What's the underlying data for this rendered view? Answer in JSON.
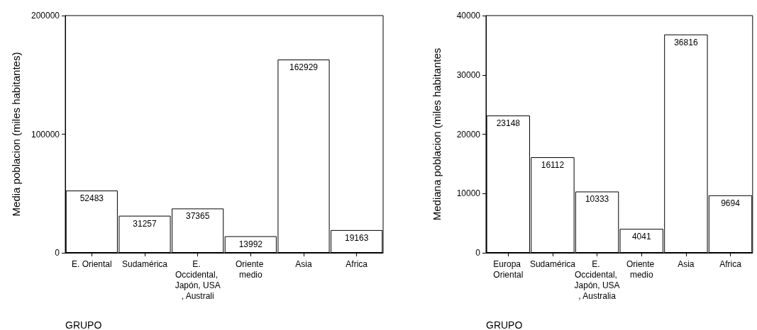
{
  "chart_data": [
    {
      "type": "bar",
      "xlabel": "GRUPO",
      "ylabel": "Media poblacion (miles habitantes)",
      "categories": [
        "E. Oriental",
        "Sudamérica",
        "E. Occidental, Japón, USA, Australi",
        "Oriente medio",
        "Asia",
        "Africa"
      ],
      "values": [
        52483,
        31257,
        37365,
        13992,
        162929,
        19163
      ],
      "color": "#ffffff",
      "ylim": [
        0,
        200000
      ],
      "yticks": [
        0,
        100000,
        200000
      ],
      "grid": false,
      "data_labels": true
    },
    {
      "type": "bar",
      "xlabel": "GRUPO",
      "ylabel": "Mediana poblacion (miles habitantes",
      "categories": [
        "Europa Oriental",
        "Sudamérica",
        "E. Occidental, Japón, USA, Australia",
        "Oriente medio",
        "Asia",
        "Africa"
      ],
      "values": [
        23148,
        16112,
        10333,
        4041,
        36816,
        9694
      ],
      "color": "#ffffff",
      "ylim": [
        0,
        40000
      ],
      "yticks": [
        0,
        10000,
        20000,
        30000,
        40000
      ],
      "grid": false,
      "data_labels": true
    }
  ]
}
